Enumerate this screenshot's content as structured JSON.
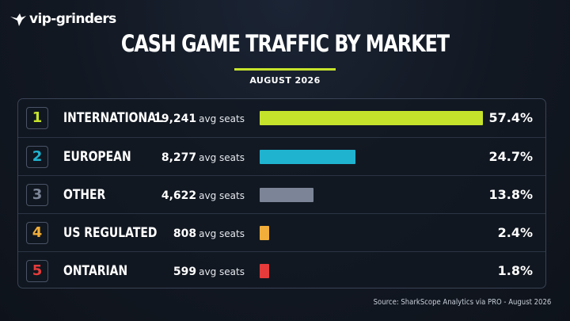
{
  "brand": {
    "name": "vip-grinders"
  },
  "header": {
    "title": "CASH GAME TRAFFIC BY MARKET",
    "subtitle": "AUGUST 2026",
    "accent_color": "#c6e32c"
  },
  "chart_data": {
    "type": "bar",
    "orientation": "horizontal",
    "title": "CASH GAME TRAFFIC BY MARKET",
    "subtitle": "AUGUST 2026",
    "seats_unit": "avg seats",
    "categories": [
      "INTERNATIONAL",
      "EUROPEAN",
      "OTHER",
      "US REGULATED",
      "ONTARIAN"
    ],
    "rows": [
      {
        "rank": "1",
        "market": "INTERNATIONAL",
        "seats": 19241,
        "seats_label": "19,241",
        "share": 57.4,
        "share_label": "57.4%",
        "color": "#c6e32c"
      },
      {
        "rank": "2",
        "market": "EUROPEAN",
        "seats": 8277,
        "seats_label": "8,277",
        "share": 24.7,
        "share_label": "24.7%",
        "color": "#1fb3cf"
      },
      {
        "rank": "3",
        "market": "OTHER",
        "seats": 4622,
        "seats_label": "4,622",
        "share": 13.8,
        "share_label": "13.8%",
        "color": "#7b8597"
      },
      {
        "rank": "4",
        "market": "US REGULATED",
        "seats": 808,
        "seats_label": "808",
        "share": 2.4,
        "share_label": "2.4%",
        "color": "#f2ae3a"
      },
      {
        "rank": "5",
        "market": "ONTARIAN",
        "seats": 599,
        "seats_label": "599",
        "share": 1.8,
        "share_label": "1.8%",
        "color": "#e63b3b"
      }
    ],
    "grid": false,
    "legend": "none"
  },
  "footer": {
    "source": "Source: SharkScope Analytics via PRO - August 2026"
  }
}
